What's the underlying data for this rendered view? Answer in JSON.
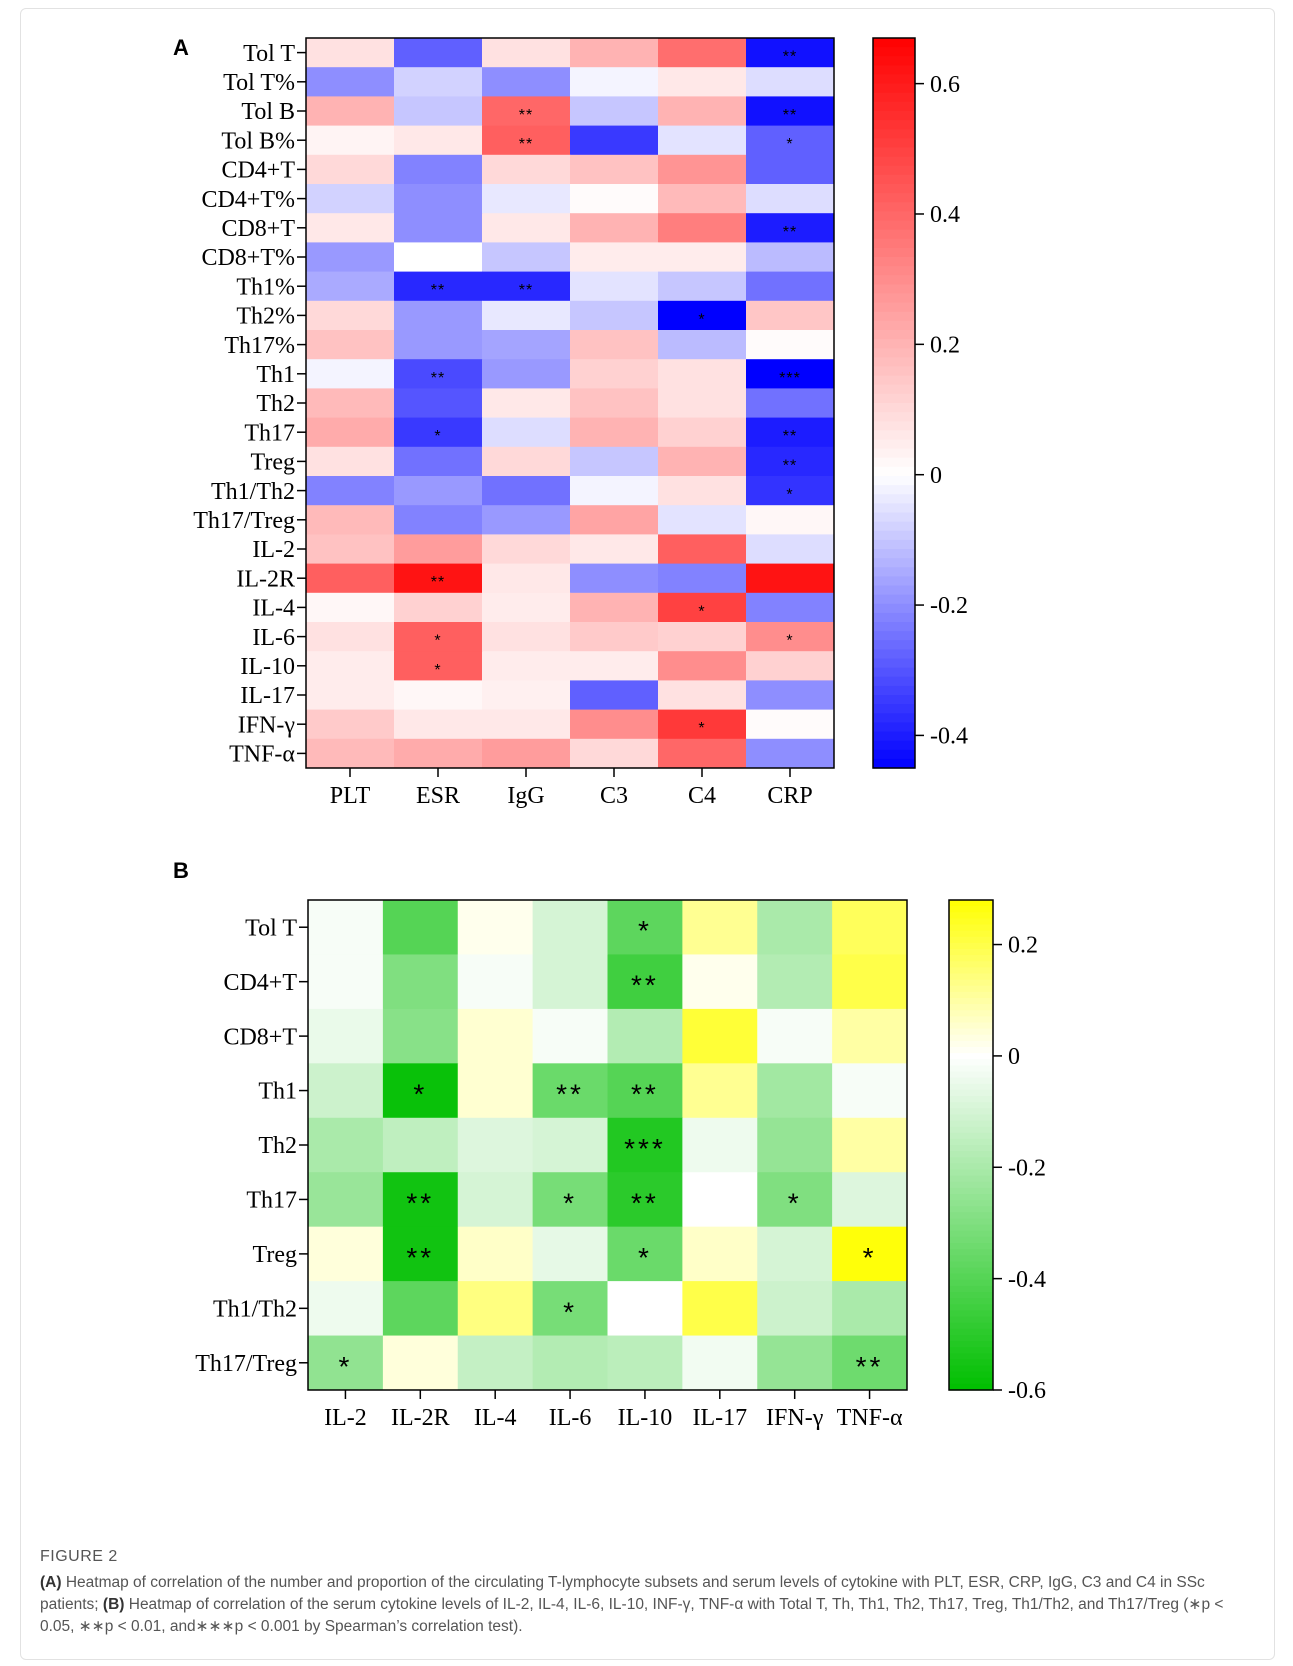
{
  "figure_label": "FIGURE 2",
  "caption": {
    "a_tag": "(A)",
    "a_text": " Heatmap of correlation of the number and proportion of the circulating T-lymphocyte subsets and serum levels of cytokine with PLT, ESR, CRP, IgG, C3 and C4 in SSc patients; ",
    "b_tag": "(B)",
    "b_text": " Heatmap of correlation of the serum cytokine levels of IL-2, IL-4, IL-6, IL-10, INF-γ, TNF-α with Total T, Th, Th1, Th2, Th17, Treg, Th1/Th2, and Th17/Treg (∗p < 0.05, ∗∗p < 0.01, and∗∗∗p < 0.001 by Spearman’s correlation test)."
  },
  "colors": {
    "a_negative": "#0000ff",
    "a_zero": "#ffffff",
    "a_positive": "#ff0000",
    "b_negative": "#00bf00",
    "b_zero": "#ffffff",
    "b_positive": "#ffff00"
  },
  "chart_data": [
    {
      "type": "heatmap",
      "panel": "A",
      "columns": [
        "PLT",
        "ESR",
        "IgG",
        "C3",
        "C4",
        "CRP"
      ],
      "rows": [
        "Tol T",
        "Tol T%",
        "Tol B",
        "Tol B%",
        "CD4+T",
        "CD4+T%",
        "CD8+T",
        "CD8+T%",
        "Th1%",
        "Th2%",
        "Th17%",
        "Th1",
        "Th2",
        "Th17",
        "Treg",
        "Th1/Th2",
        "Th17/Treg",
        "IL-2",
        "IL-2R",
        "IL-4",
        "IL-6",
        "IL-10",
        "IL-17",
        "IFN-γ",
        "TNF-α"
      ],
      "values": [
        [
          0.08,
          -0.28,
          0.08,
          0.2,
          0.38,
          -0.42
        ],
        [
          -0.2,
          -0.08,
          -0.2,
          -0.02,
          0.06,
          -0.06
        ],
        [
          0.2,
          -0.1,
          0.4,
          -0.1,
          0.2,
          -0.42
        ],
        [
          0.03,
          0.06,
          0.42,
          -0.35,
          -0.05,
          -0.28
        ],
        [
          0.1,
          -0.22,
          0.1,
          0.16,
          0.28,
          -0.28
        ],
        [
          -0.08,
          -0.2,
          -0.04,
          0.01,
          0.18,
          -0.06
        ],
        [
          0.06,
          -0.2,
          0.06,
          0.2,
          0.34,
          -0.4
        ],
        [
          -0.18,
          0.0,
          -0.1,
          0.05,
          0.05,
          -0.12
        ],
        [
          -0.15,
          -0.38,
          -0.38,
          -0.05,
          -0.1,
          -0.25
        ],
        [
          0.1,
          -0.18,
          -0.04,
          -0.1,
          -0.45,
          0.15
        ],
        [
          0.16,
          -0.18,
          -0.16,
          0.16,
          -0.12,
          0.01
        ],
        [
          -0.02,
          -0.32,
          -0.18,
          0.12,
          0.08,
          -0.45
        ],
        [
          0.18,
          -0.3,
          0.06,
          0.16,
          0.08,
          -0.25
        ],
        [
          0.22,
          -0.35,
          -0.06,
          0.2,
          0.12,
          -0.4
        ],
        [
          0.08,
          -0.25,
          0.1,
          -0.1,
          0.2,
          -0.38
        ],
        [
          -0.22,
          -0.18,
          -0.25,
          -0.02,
          0.08,
          -0.36
        ],
        [
          0.18,
          -0.22,
          -0.18,
          0.24,
          -0.05,
          0.02
        ],
        [
          0.16,
          0.26,
          0.1,
          0.06,
          0.42,
          -0.06
        ],
        [
          0.42,
          0.62,
          0.06,
          -0.2,
          -0.22,
          0.62
        ],
        [
          0.02,
          0.12,
          0.05,
          0.2,
          0.5,
          -0.22
        ],
        [
          0.08,
          0.42,
          0.08,
          0.14,
          0.12,
          0.3
        ],
        [
          0.05,
          0.42,
          0.05,
          0.05,
          0.3,
          0.12
        ],
        [
          0.05,
          0.02,
          0.04,
          -0.28,
          0.08,
          -0.2
        ],
        [
          0.14,
          0.06,
          0.06,
          0.3,
          0.52,
          0.01
        ],
        [
          0.18,
          0.22,
          0.26,
          0.1,
          0.4,
          -0.2
        ]
      ],
      "significance": [
        [
          "",
          "",
          "",
          "",
          "",
          "**"
        ],
        [
          "",
          "",
          "",
          "",
          "",
          ""
        ],
        [
          "",
          "",
          "**",
          "",
          "",
          "**"
        ],
        [
          "",
          "",
          "**",
          "",
          "",
          "*"
        ],
        [
          "",
          "",
          "",
          "",
          "",
          ""
        ],
        [
          "",
          "",
          "",
          "",
          "",
          ""
        ],
        [
          "",
          "",
          "",
          "",
          "",
          "**"
        ],
        [
          "",
          "",
          "",
          "",
          "",
          ""
        ],
        [
          "",
          "**",
          "**",
          "",
          "",
          ""
        ],
        [
          "",
          "",
          "",
          "",
          "*",
          ""
        ],
        [
          "",
          "",
          "",
          "",
          "",
          ""
        ],
        [
          "",
          "**",
          "",
          "",
          "",
          "***"
        ],
        [
          "",
          "",
          "",
          "",
          "",
          ""
        ],
        [
          "",
          "*",
          "",
          "",
          "",
          "**"
        ],
        [
          "",
          "",
          "",
          "",
          "",
          "**"
        ],
        [
          "",
          "",
          "",
          "",
          "",
          "*"
        ],
        [
          "",
          "",
          "",
          "",
          "",
          ""
        ],
        [
          "",
          "",
          "",
          "",
          "",
          ""
        ],
        [
          "",
          "**",
          "",
          "",
          "",
          ""
        ],
        [
          "",
          "",
          "",
          "",
          "*",
          ""
        ],
        [
          "",
          "*",
          "",
          "",
          "",
          "*"
        ],
        [
          "",
          "*",
          "",
          "",
          "",
          ""
        ],
        [
          "",
          "",
          "",
          "",
          "",
          ""
        ],
        [
          "",
          "",
          "",
          "",
          "*",
          ""
        ],
        [
          "",
          "",
          "",
          "",
          "",
          ""
        ]
      ],
      "colorbar": {
        "min": -0.45,
        "max": 0.67,
        "ticks": [
          -0.4,
          -0.2,
          0,
          0.2,
          0.4,
          0.6
        ],
        "tick_labels": [
          "-0.4",
          "-0.2",
          "0",
          "0.2",
          "0.4",
          "0.6"
        ]
      }
    },
    {
      "type": "heatmap",
      "panel": "B",
      "columns": [
        "IL-2",
        "IL-2R",
        "IL-4",
        "IL-6",
        "IL-10",
        "IL-17",
        "IFN-γ",
        "TNF-α"
      ],
      "rows": [
        "Tol T",
        "CD4+T",
        "CD8+T",
        "Th1",
        "Th2",
        "Th17",
        "Treg",
        "Th1/Th2",
        "Th17/Treg"
      ],
      "values": [
        [
          -0.02,
          -0.4,
          0.02,
          -0.1,
          -0.38,
          0.12,
          -0.2,
          0.18
        ],
        [
          -0.02,
          -0.3,
          -0.02,
          -0.1,
          -0.45,
          0.02,
          -0.18,
          0.2
        ],
        [
          -0.05,
          -0.28,
          0.05,
          -0.02,
          -0.18,
          0.22,
          -0.02,
          0.1
        ],
        [
          -0.12,
          -0.58,
          0.05,
          -0.35,
          -0.4,
          0.12,
          -0.22,
          -0.02
        ],
        [
          -0.2,
          -0.15,
          -0.08,
          -0.1,
          -0.52,
          -0.04,
          -0.25,
          0.1
        ],
        [
          -0.24,
          -0.56,
          -0.1,
          -0.32,
          -0.5,
          0.0,
          -0.3,
          -0.08
        ],
        [
          0.04,
          -0.56,
          0.06,
          -0.06,
          -0.35,
          0.06,
          -0.1,
          0.27
        ],
        [
          -0.04,
          -0.38,
          0.14,
          -0.32,
          0.0,
          0.2,
          -0.12,
          -0.2
        ],
        [
          -0.26,
          0.04,
          -0.14,
          -0.18,
          -0.16,
          -0.03,
          -0.25,
          -0.34
        ]
      ],
      "significance": [
        [
          "",
          "",
          "",
          "",
          "*",
          "",
          "",
          ""
        ],
        [
          "",
          "",
          "",
          "",
          "**",
          "",
          "",
          ""
        ],
        [
          "",
          "",
          "",
          "",
          "",
          "",
          "",
          ""
        ],
        [
          "",
          "*",
          "",
          "**",
          "**",
          "",
          "",
          ""
        ],
        [
          "",
          "",
          "",
          "",
          "***",
          "",
          "",
          ""
        ],
        [
          "",
          "**",
          "",
          "*",
          "**",
          "",
          "*",
          ""
        ],
        [
          "",
          "**",
          "",
          "",
          "*",
          "",
          "",
          "*"
        ],
        [
          "",
          "",
          "",
          "*",
          "",
          "",
          "",
          ""
        ],
        [
          "*",
          "",
          "",
          "",
          "",
          "",
          "",
          "**"
        ]
      ],
      "colorbar": {
        "min": -0.6,
        "max": 0.28,
        "ticks": [
          -0.6,
          -0.4,
          -0.2,
          0,
          0.2
        ],
        "tick_labels": [
          "-0.6",
          "-0.4",
          "-0.2",
          "0",
          "0.2"
        ]
      }
    }
  ]
}
